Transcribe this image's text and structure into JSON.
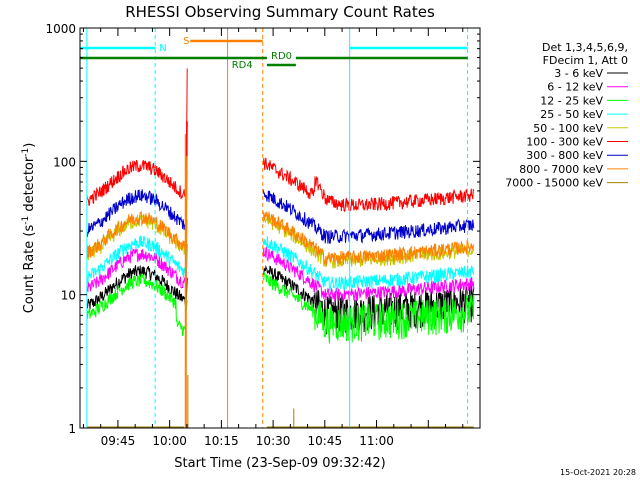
{
  "chart_data": {
    "type": "line",
    "title": "RHESSI Observing Summary Count Rates",
    "xlabel": "Start Time (23-Sep-09 09:32:42)",
    "ylabel_main": "Count Rate (s",
    "ylabel_sup": "-1",
    "ylabel_rest": " detector",
    "ylabel_sup2": "-1",
    "ylabel_close": ")",
    "yscale": "log",
    "ylim": [
      1,
      1000
    ],
    "xlim_minutes": [
      9.5667,
      11.5
    ],
    "y_ticks": [
      {
        "label": "1",
        "value": 1
      },
      {
        "label": "10",
        "value": 10
      },
      {
        "label": "100",
        "value": 100
      },
      {
        "label": "1000",
        "value": 1000
      }
    ],
    "x_ticks": [
      {
        "label": "09:45",
        "t": 9.75
      },
      {
        "label": "10:00",
        "t": 10.0
      },
      {
        "label": "10:15",
        "t": 10.25
      },
      {
        "label": "10:30",
        "t": 10.5
      },
      {
        "label": "10:45",
        "t": 10.75
      },
      {
        "label": "11:00",
        "t": 11.0
      }
    ],
    "legend_header": [
      "Det 1,3,4,5,6,9,",
      "FDecim 1, Att 0"
    ],
    "series": [
      {
        "name": "3 - 6 keV",
        "color": "#000000"
      },
      {
        "name": "6 - 12 keV",
        "color": "#ff00ff"
      },
      {
        "name": "12 - 25 keV",
        "color": "#00ff00"
      },
      {
        "name": "25 - 50 keV",
        "color": "#00ffff"
      },
      {
        "name": "50 - 100 keV",
        "color": "#c8c800"
      },
      {
        "name": "100 - 300 keV",
        "color": "#ff0000"
      },
      {
        "name": "300 - 800 keV",
        "color": "#0000cc"
      },
      {
        "name": "800 - 7000 keV",
        "color": "#ff8000"
      },
      {
        "name": "7000 - 15000 keV",
        "color": "#a08000"
      }
    ],
    "annotations": {
      "night_label": "N",
      "saa_label": "S",
      "rd0_label": "RD0",
      "rd4_label": "RD4",
      "night_color": "#00ffff",
      "saa_color": "#ff8000",
      "rd_color": "#008000"
    },
    "timestamp": "15-Oct-2021 20:28"
  }
}
